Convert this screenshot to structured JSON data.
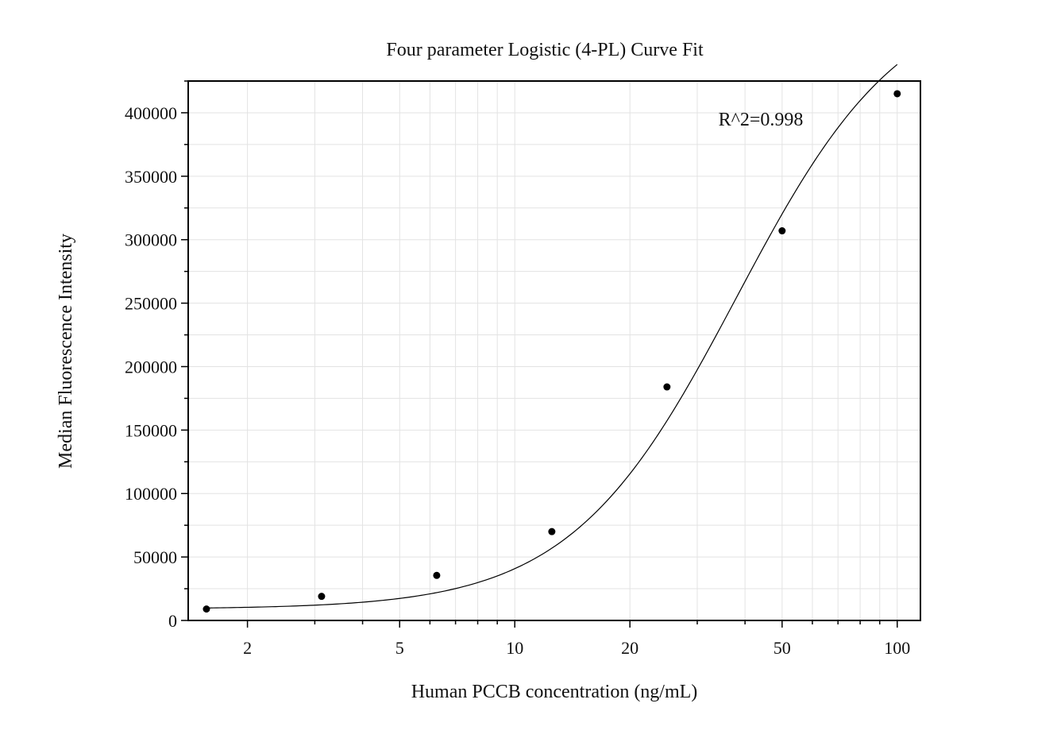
{
  "chart_data": {
    "type": "scatter",
    "title": "Four parameter Logistic (4-PL) Curve Fit",
    "xlabel": "Human PCCB concentration (ng/mL)",
    "ylabel": "Median Fluorescence Intensity",
    "x_scale": "log",
    "xlim": [
      1.4,
      115
    ],
    "ylim": [
      0,
      425000
    ],
    "x_ticks": [
      2,
      5,
      10,
      20,
      50,
      100
    ],
    "x_tick_labels": [
      "2",
      "5",
      "10",
      "20",
      "50",
      "100"
    ],
    "y_ticks": [
      0,
      50000,
      100000,
      150000,
      200000,
      250000,
      300000,
      350000,
      400000
    ],
    "y_tick_labels": [
      "0",
      "50000",
      "100000",
      "150000",
      "200000",
      "250000",
      "300000",
      "350000",
      "400000"
    ],
    "grid": true,
    "annotation": "R^2=0.998",
    "series": [
      {
        "kind": "points",
        "x": [
          1.5625,
          3.125,
          6.25,
          12.5,
          25,
          50,
          100
        ],
        "y": [
          9000,
          19000,
          35500,
          70000,
          184000,
          307000,
          415000
        ]
      },
      {
        "kind": "fit-curve",
        "model": "4PL",
        "params": {
          "A": 9000,
          "D": 500000,
          "C": 38,
          "B": 2.0
        }
      }
    ],
    "colors": {
      "points": "#000000",
      "curve": "#000000",
      "grid": "#e3e3e3",
      "frame": "#000000"
    }
  }
}
